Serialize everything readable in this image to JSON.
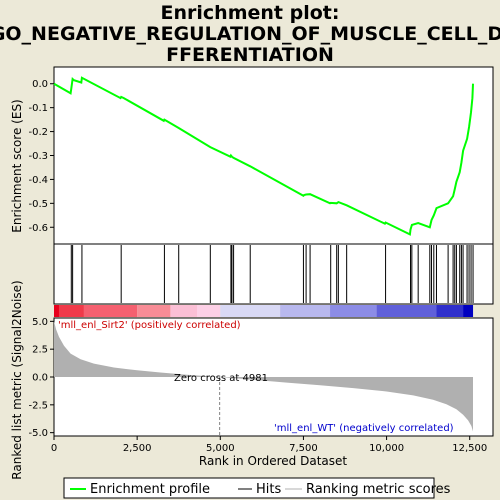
{
  "title_lines": [
    "Enrichment plot:",
    "GO_NEGATIVE_REGULATION_OF_MUSCLE_CELL_DI",
    "FFERENTIATION"
  ],
  "colors": {
    "background": "#ece9d8",
    "panel": "#ffffff",
    "profile": "#00ff00",
    "hits": "#000000",
    "metric_fill": "#b0b0b0",
    "positive_label": "#cc0000",
    "negative_label": "#0000cc",
    "zero_line": "#808080"
  },
  "chart_data": [
    {
      "type": "line",
      "name": "enrichment-profile",
      "ylabel": "Enrichment score (ES)",
      "xlim": [
        0,
        13200
      ],
      "ylim": [
        -0.67,
        0.07
      ],
      "y_ticks": [
        0.0,
        -0.1,
        -0.2,
        -0.3,
        -0.4,
        -0.5,
        -0.6
      ],
      "y_tick_labels": [
        "0.0",
        "-0.1",
        "-0.2",
        "-0.3",
        "-0.4",
        "-0.5",
        "-0.6"
      ],
      "grid": false,
      "series": [
        {
          "x": [
            0,
            500,
            520,
            560,
            600,
            820,
            840,
            2000,
            2020,
            2100,
            3300,
            3320,
            3750,
            4700,
            5300,
            5320,
            5350,
            5400,
            5900,
            7500,
            7520,
            7580,
            7700,
            8300,
            8320,
            8500,
            8550,
            8800,
            9950,
            9970,
            10700,
            10720,
            10760,
            10950,
            11300,
            11350,
            11420,
            11500,
            11850,
            12000,
            12050,
            12100,
            12200,
            12250,
            12300,
            12420,
            12480,
            12540,
            12580,
            12600
          ],
          "y": [
            0.0,
            -0.04,
            -0.02,
            0.02,
            0.015,
            0.005,
            0.025,
            -0.06,
            -0.055,
            -0.06,
            -0.155,
            -0.15,
            -0.185,
            -0.265,
            -0.305,
            -0.3,
            -0.305,
            -0.31,
            -0.345,
            -0.468,
            -0.465,
            -0.463,
            -0.462,
            -0.5,
            -0.498,
            -0.5,
            -0.495,
            -0.508,
            -0.585,
            -0.58,
            -0.63,
            -0.61,
            -0.59,
            -0.582,
            -0.6,
            -0.57,
            -0.55,
            -0.52,
            -0.5,
            -0.47,
            -0.44,
            -0.41,
            -0.37,
            -0.33,
            -0.28,
            -0.23,
            -0.18,
            -0.12,
            -0.06,
            0.0
          ]
        }
      ]
    },
    {
      "type": "scatter",
      "name": "hits",
      "hit_positions": [
        520,
        560,
        840,
        2020,
        3320,
        3750,
        4700,
        5320,
        5350,
        5400,
        5900,
        7500,
        7580,
        7700,
        8320,
        8500,
        8550,
        8800,
        9970,
        10720,
        10760,
        10950,
        11300,
        11350,
        11420,
        11500,
        11850,
        12000,
        12050,
        12100,
        12200,
        12250,
        12300,
        12420,
        12480,
        12540,
        12600
      ]
    },
    {
      "type": "area",
      "name": "ranked-list-metric",
      "xlabel": "Rank in Ordered Dataset",
      "ylabel": "Ranked list metric (Signal2Noise)",
      "xlim": [
        0,
        13200
      ],
      "ylim": [
        -5.3,
        5.3
      ],
      "x_ticks": [
        0,
        2500,
        5000,
        7500,
        10000,
        12500
      ],
      "x_tick_labels": [
        "0",
        "2,500",
        "5,000",
        "7,500",
        "10,000",
        "12,500"
      ],
      "y_ticks": [
        5.0,
        2.5,
        0.0,
        -2.5,
        -5.0
      ],
      "y_tick_labels": [
        "5.0",
        "2.5",
        "0.0",
        "-2.5",
        "-5.0"
      ],
      "zero_cross_rank": 4981,
      "series": [
        {
          "x": [
            0,
            60,
            150,
            300,
            500,
            800,
            1200,
            1800,
            2500,
            3200,
            4000,
            4981,
            6000,
            7000,
            8000,
            9000,
            10000,
            10800,
            11400,
            11800,
            12100,
            12300,
            12450,
            12550,
            12600
          ],
          "y": [
            5.0,
            4.3,
            3.6,
            2.8,
            2.1,
            1.6,
            1.2,
            0.85,
            0.6,
            0.4,
            0.2,
            0.0,
            -0.25,
            -0.5,
            -0.75,
            -1.0,
            -1.3,
            -1.65,
            -2.05,
            -2.45,
            -2.9,
            -3.4,
            -3.9,
            -4.4,
            -4.9
          ]
        }
      ]
    }
  ],
  "annotations": {
    "positive": "'mll_enl_Sirt2' (positively correlated)",
    "negative": "'mll_enl_WT' (negatively correlated)",
    "zero_cross": "Zero cross at 4981"
  },
  "legend": {
    "items": [
      {
        "label": "Enrichment profile",
        "symbol": "profile"
      },
      {
        "label": "Hits",
        "symbol": "hits"
      },
      {
        "label": "Ranking metric scores",
        "symbol": "metric"
      }
    ]
  }
}
